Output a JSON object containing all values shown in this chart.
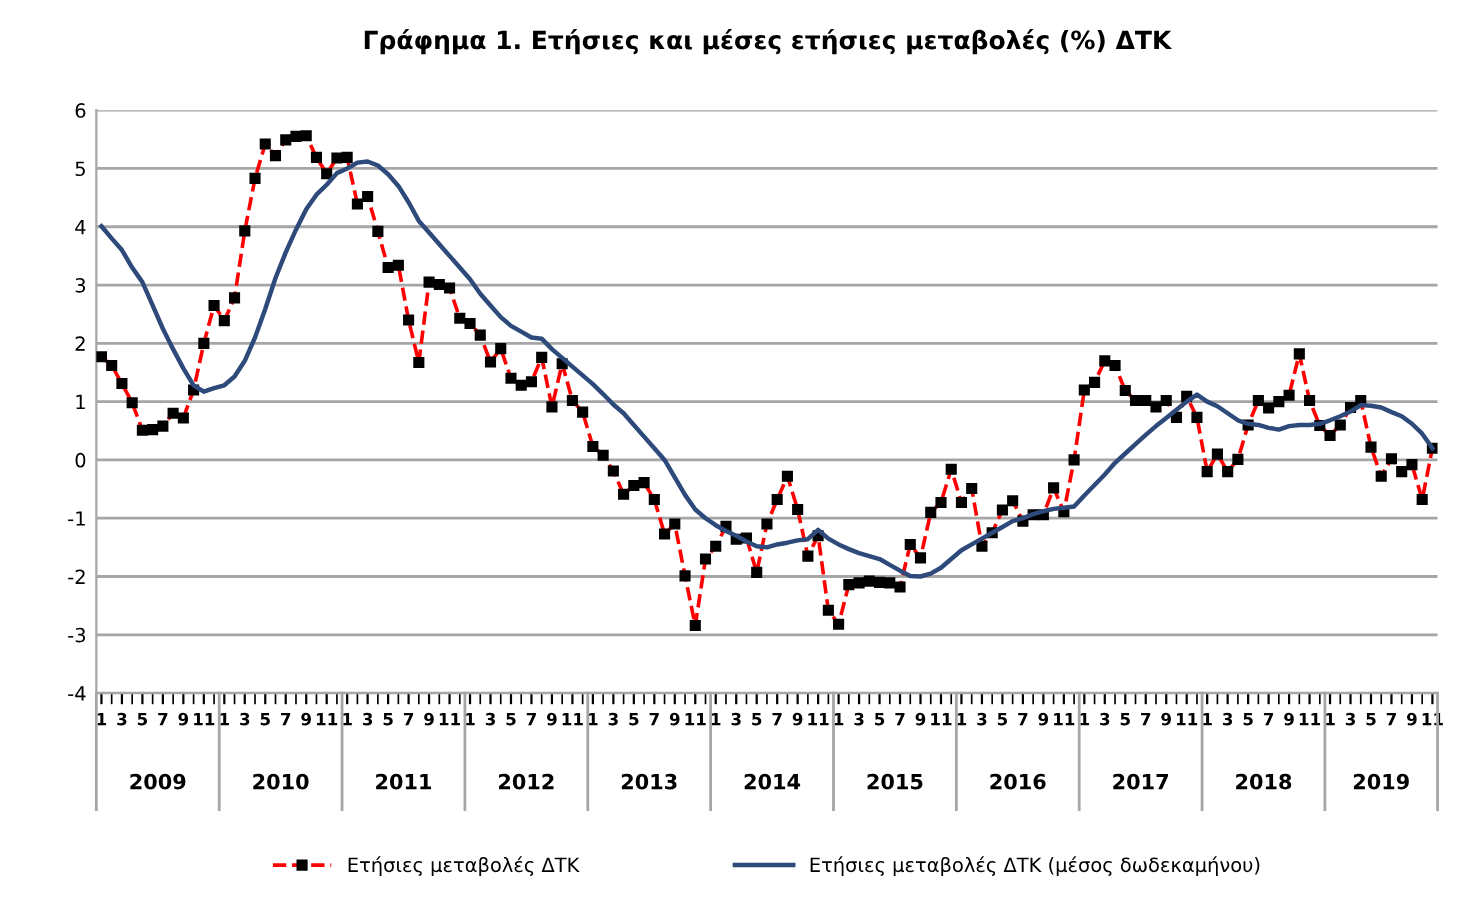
{
  "chart_data": {
    "type": "line",
    "title": "Γράφημα 1. Ετήσιες και μέσες ετήσιες μεταβολές (%) ΔΤΚ",
    "categories": [
      "1",
      null,
      "3",
      null,
      "5",
      null,
      "7",
      null,
      "9",
      null,
      "11",
      null,
      "1",
      null,
      "3",
      null,
      "5",
      null,
      "7",
      null,
      "9",
      null,
      "11",
      null,
      "1",
      null,
      "3",
      null,
      "5",
      null,
      "7",
      null,
      "9",
      null,
      "11",
      null,
      "1",
      null,
      "3",
      null,
      "5",
      null,
      "7",
      null,
      "9",
      null,
      "11",
      null,
      "1",
      null,
      "3",
      null,
      "5",
      null,
      "7",
      null,
      "9",
      null,
      "11",
      null,
      "1",
      null,
      "3",
      null,
      "5",
      null,
      "7",
      null,
      "9",
      null,
      "11",
      null,
      "1",
      null,
      "3",
      null,
      "5",
      null,
      "7",
      null,
      "9",
      null,
      "11",
      null,
      "1",
      null,
      "3",
      null,
      "5",
      null,
      "7",
      null,
      "9",
      null,
      "11",
      null,
      "1",
      null,
      "3",
      null,
      "5",
      null,
      "7",
      null,
      "9",
      null,
      "11",
      null,
      "1",
      null,
      "3",
      null,
      "5",
      null,
      "7",
      null,
      "9",
      null,
      "11",
      null,
      "1",
      null,
      "3",
      null,
      "5",
      null,
      "7",
      null,
      "9",
      null,
      "11"
    ],
    "annotations": [
      "2009",
      "2010",
      "2011",
      "2012",
      "2013",
      "2014",
      "2015",
      "2016",
      "2017",
      "2018",
      "2019"
    ],
    "ylim": [
      -4,
      6
    ],
    "yticks": [
      -4,
      -3,
      -2,
      -1,
      0,
      1,
      2,
      3,
      4,
      5,
      6
    ],
    "grid": "y",
    "legend": "bottom",
    "series": [
      {
        "name": "Ετήσιες μεταβολές ΔΤΚ",
        "color": "#ff0000",
        "line_style": "dashed",
        "marker": "square",
        "values": [
          1.77,
          1.62,
          1.31,
          0.98,
          0.51,
          0.52,
          0.58,
          0.8,
          0.72,
          1.2,
          2.0,
          2.65,
          2.39,
          2.78,
          3.93,
          4.83,
          5.42,
          5.22,
          5.49,
          5.55,
          5.56,
          5.19,
          4.91,
          5.18,
          5.19,
          4.39,
          4.52,
          3.92,
          3.3,
          3.34,
          2.4,
          1.67,
          3.05,
          3.01,
          2.95,
          2.43,
          2.34,
          2.14,
          1.68,
          1.91,
          1.4,
          1.28,
          1.34,
          1.76,
          0.91,
          1.65,
          1.02,
          0.82,
          0.23,
          0.08,
          -0.19,
          -0.59,
          -0.44,
          -0.39,
          -0.68,
          -1.27,
          -1.1,
          -1.99,
          -2.84,
          -1.7,
          -1.48,
          -1.14,
          -1.36,
          -1.34,
          -1.93,
          -1.1,
          -0.68,
          -0.28,
          -0.85,
          -1.65,
          -1.3,
          -2.58,
          -2.82,
          -2.14,
          -2.11,
          -2.08,
          -2.1,
          -2.11,
          -2.18,
          -1.45,
          -1.68,
          -0.9,
          -0.73,
          -0.16,
          -0.73,
          -0.49,
          -1.48,
          -1.25,
          -0.86,
          -0.7,
          -1.05,
          -0.94,
          -0.94,
          -0.48,
          -0.89,
          0.0,
          1.2,
          1.33,
          1.7,
          1.62,
          1.19,
          1.02,
          1.02,
          0.91,
          1.02,
          0.73,
          1.09,
          0.73,
          -0.2,
          0.1,
          -0.2,
          0.01,
          0.6,
          1.02,
          0.89,
          1.0,
          1.11,
          1.82,
          1.02,
          0.59,
          0.42,
          0.6,
          0.9,
          1.02,
          0.22,
          -0.28,
          0.02,
          -0.2,
          -0.08,
          -0.68,
          0.2
        ]
      },
      {
        "name": "Ετήσιες μεταβολές ΔΤΚ (μέσος δωδεκαμήνου)",
        "color": "#2e4a7a",
        "line_style": "solid",
        "marker": "none",
        "values": [
          4.01,
          3.8,
          3.6,
          3.3,
          3.05,
          2.65,
          2.25,
          1.9,
          1.57,
          1.28,
          1.17,
          1.23,
          1.28,
          1.43,
          1.7,
          2.1,
          2.59,
          3.12,
          3.56,
          3.95,
          4.3,
          4.55,
          4.72,
          4.92,
          5.0,
          5.1,
          5.12,
          5.05,
          4.9,
          4.7,
          4.42,
          4.1,
          3.9,
          3.7,
          3.5,
          3.3,
          3.1,
          2.85,
          2.65,
          2.45,
          2.3,
          2.2,
          2.1,
          2.08,
          1.9,
          1.75,
          1.6,
          1.45,
          1.3,
          1.13,
          0.95,
          0.8,
          0.6,
          0.4,
          0.2,
          0.0,
          -0.3,
          -0.6,
          -0.85,
          -1.0,
          -1.12,
          -1.22,
          -1.3,
          -1.4,
          -1.48,
          -1.5,
          -1.45,
          -1.42,
          -1.38,
          -1.36,
          -1.2,
          -1.35,
          -1.45,
          -1.53,
          -1.6,
          -1.65,
          -1.7,
          -1.8,
          -1.9,
          -1.99,
          -2.0,
          -1.95,
          -1.85,
          -1.7,
          -1.55,
          -1.45,
          -1.35,
          -1.25,
          -1.15,
          -1.05,
          -1.0,
          -0.93,
          -0.88,
          -0.84,
          -0.82,
          -0.8,
          -0.61,
          -0.43,
          -0.25,
          -0.05,
          0.11,
          0.27,
          0.43,
          0.58,
          0.72,
          0.86,
          1.0,
          1.12,
          1.0,
          0.92,
          0.8,
          0.68,
          0.62,
          0.6,
          0.55,
          0.52,
          0.58,
          0.6,
          0.6,
          0.62,
          0.68,
          0.75,
          0.83,
          0.94,
          0.93,
          0.9,
          0.82,
          0.75,
          0.62,
          0.45,
          0.2
        ]
      }
    ]
  }
}
